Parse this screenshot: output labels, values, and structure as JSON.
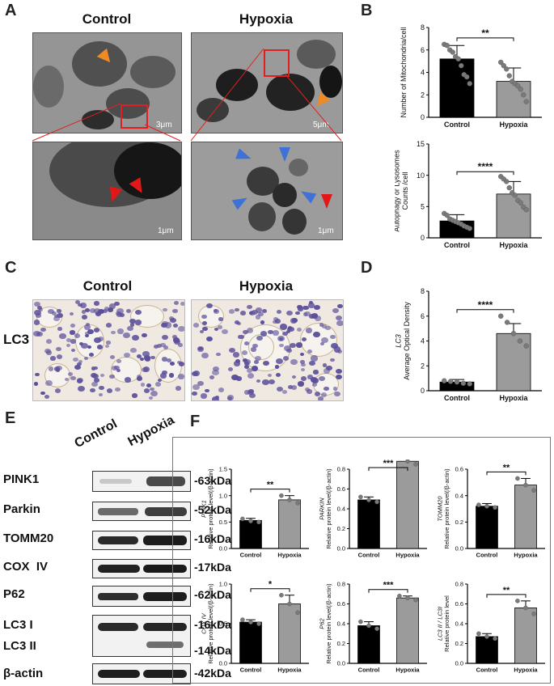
{
  "panels": {
    "A": "A",
    "B": "B",
    "C": "C",
    "D": "D",
    "E": "E",
    "F": "F"
  },
  "panelA": {
    "control": "Control",
    "hypoxia": "Hypoxia",
    "scale_top_left": "3μm",
    "scale_top_right": "5μm",
    "scale_bottom_left": "1μm",
    "scale_bottom_right": "1μm"
  },
  "panelC": {
    "control": "Control",
    "hypoxia": "Hypoxia",
    "row_label": "LC3"
  },
  "panelE": {
    "lanes": [
      "Control",
      "Hypoxia"
    ],
    "rows": [
      {
        "label": "PINK1",
        "kda": "-63kDa"
      },
      {
        "label": "Parkin",
        "kda": "-52kDa"
      },
      {
        "label": "TOMM20",
        "kda": "-16kDa"
      },
      {
        "label": "COX  IV",
        "kda": "-17kDa"
      },
      {
        "label": "P62",
        "kda": "-62kDa"
      },
      {
        "label": "LC3 I",
        "kda": "-16kDa"
      },
      {
        "label": "LC3 II",
        "kda": "-14kDa"
      },
      {
        "label": "β-actin",
        "kda": "-42kDa"
      }
    ]
  },
  "colors": {
    "control": "#000000",
    "hypoxia": "#9b9b9b",
    "point": "#7a7a7a"
  },
  "chart_data": [
    {
      "id": "B1",
      "type": "bar",
      "categories": [
        "Control",
        "Hypoxia"
      ],
      "values": [
        5.2,
        3.2
      ],
      "errors": [
        1.2,
        1.2
      ],
      "ylim": [
        0,
        8
      ],
      "yticks": [
        "0",
        "2",
        "4",
        "6",
        "8"
      ],
      "ylabel": "Number of Mitochondria/cell",
      "ylabel_italic": "",
      "sig": "**",
      "points": [
        [
          6.5,
          6.4,
          6.0,
          5.8,
          5.4,
          5.2,
          4.6,
          3.8,
          3.6,
          3.0
        ],
        [
          4.9,
          4.6,
          4.3,
          3.7,
          3.2,
          3.0,
          2.8,
          2.5,
          2.0,
          1.4
        ]
      ]
    },
    {
      "id": "B2",
      "type": "bar",
      "categories": [
        "Control",
        "Hypoxia"
      ],
      "values": [
        2.7,
        7.0
      ],
      "errors": [
        1.0,
        2.0
      ],
      "ylim": [
        0,
        15
      ],
      "yticks": [
        "0",
        "5",
        "10",
        "15"
      ],
      "ylabel": "Autophagy or Lysosomes Counts /cell",
      "ylabel_italic": "",
      "sig": "****",
      "points": [
        [
          3.9,
          3.6,
          3.0,
          2.8,
          2.6,
          2.4,
          2.2,
          1.9,
          1.7,
          1.5
        ],
        [
          9.8,
          9.4,
          9.0,
          8.0,
          7.2,
          6.8,
          6.0,
          5.6,
          4.9,
          4.5
        ]
      ]
    },
    {
      "id": "D",
      "type": "bar",
      "categories": [
        "Control",
        "Hypoxia"
      ],
      "values": [
        0.7,
        4.6
      ],
      "errors": [
        0.2,
        0.8
      ],
      "ylim": [
        0,
        8
      ],
      "yticks": [
        "0",
        "2",
        "4",
        "6",
        "8"
      ],
      "ylabel": "Average Optical Density",
      "ylabel_italic": "LC3",
      "sig": "****",
      "points": [
        [
          0.8,
          0.75,
          0.7,
          0.6,
          0.55
        ],
        [
          6.0,
          5.5,
          4.6,
          4.0,
          3.6
        ]
      ]
    },
    {
      "id": "F1",
      "type": "bar",
      "categories": [
        "Control",
        "Hypoxia"
      ],
      "values": [
        0.53,
        0.92
      ],
      "errors": [
        0.04,
        0.08
      ],
      "ylim": [
        0,
        1.5
      ],
      "yticks": [
        "0.0",
        "0.5",
        "1.0",
        "1.5"
      ],
      "ylabel": "Relative protein level(/β-actin)",
      "ylabel_italic": "PINK1",
      "sig": "**",
      "points": [
        [
          0.56,
          0.52,
          0.5
        ],
        [
          1.0,
          0.92,
          0.86
        ]
      ]
    },
    {
      "id": "F2",
      "type": "bar",
      "categories": [
        "Control",
        "Hypoxia"
      ],
      "values": [
        0.49,
        0.88
      ],
      "errors": [
        0.03,
        0.04
      ],
      "ylim": [
        0,
        0.8
      ],
      "yticks": [
        "0.0",
        "0.2",
        "0.4",
        "0.6",
        "0.8"
      ],
      "ylabel": "Relative protein level(/β-actin)",
      "ylabel_italic": "PARKIN",
      "sig": "***",
      "points": [
        [
          0.52,
          0.49,
          0.47
        ],
        [
          0.92,
          0.88,
          0.85
        ]
      ]
    },
    {
      "id": "F3",
      "type": "bar",
      "categories": [
        "Control",
        "Hypoxia"
      ],
      "values": [
        0.32,
        0.48
      ],
      "errors": [
        0.02,
        0.05
      ],
      "ylim": [
        0,
        0.6
      ],
      "yticks": [
        "0.0",
        "0.2",
        "0.4",
        "0.6"
      ],
      "ylabel": "Relative protein level(/β-actin)",
      "ylabel_italic": "TOMM20",
      "sig": "**",
      "points": [
        [
          0.33,
          0.32,
          0.31
        ],
        [
          0.53,
          0.48,
          0.44
        ]
      ]
    },
    {
      "id": "F4",
      "type": "bar",
      "categories": [
        "Control",
        "Hypoxia"
      ],
      "values": [
        0.52,
        0.75
      ],
      "errors": [
        0.03,
        0.11
      ],
      "ylim": [
        0,
        1.0
      ],
      "yticks": [
        "0.0",
        "0.5",
        "1.0"
      ],
      "ylabel": "Relative protein level(/β-actin)",
      "ylabel_italic": "COX IV",
      "sig": "*",
      "points": [
        [
          0.55,
          0.52,
          0.5
        ],
        [
          0.86,
          0.75,
          0.64
        ]
      ]
    },
    {
      "id": "F5",
      "type": "bar",
      "categories": [
        "Control",
        "Hypoxia"
      ],
      "values": [
        0.38,
        0.66
      ],
      "errors": [
        0.04,
        0.02
      ],
      "ylim": [
        0,
        0.8
      ],
      "yticks": [
        "0.0",
        "0.2",
        "0.4",
        "0.6",
        "0.8"
      ],
      "ylabel": "Relative protein level(/β-actin)",
      "ylabel_italic": "P62",
      "sig": "***",
      "points": [
        [
          0.42,
          0.38,
          0.35
        ],
        [
          0.68,
          0.66,
          0.64
        ]
      ]
    },
    {
      "id": "F6",
      "type": "bar",
      "categories": [
        "Control",
        "Hypoxia"
      ],
      "values": [
        0.27,
        0.56
      ],
      "errors": [
        0.03,
        0.07
      ],
      "ylim": [
        0,
        0.8
      ],
      "yticks": [
        "0.0",
        "0.2",
        "0.4",
        "0.6",
        "0.8"
      ],
      "ylabel": "Relative protein level",
      "ylabel_italic": "LC3 II / LC3I",
      "sig": "**",
      "points": [
        [
          0.3,
          0.27,
          0.25
        ],
        [
          0.63,
          0.56,
          0.5
        ]
      ]
    }
  ]
}
